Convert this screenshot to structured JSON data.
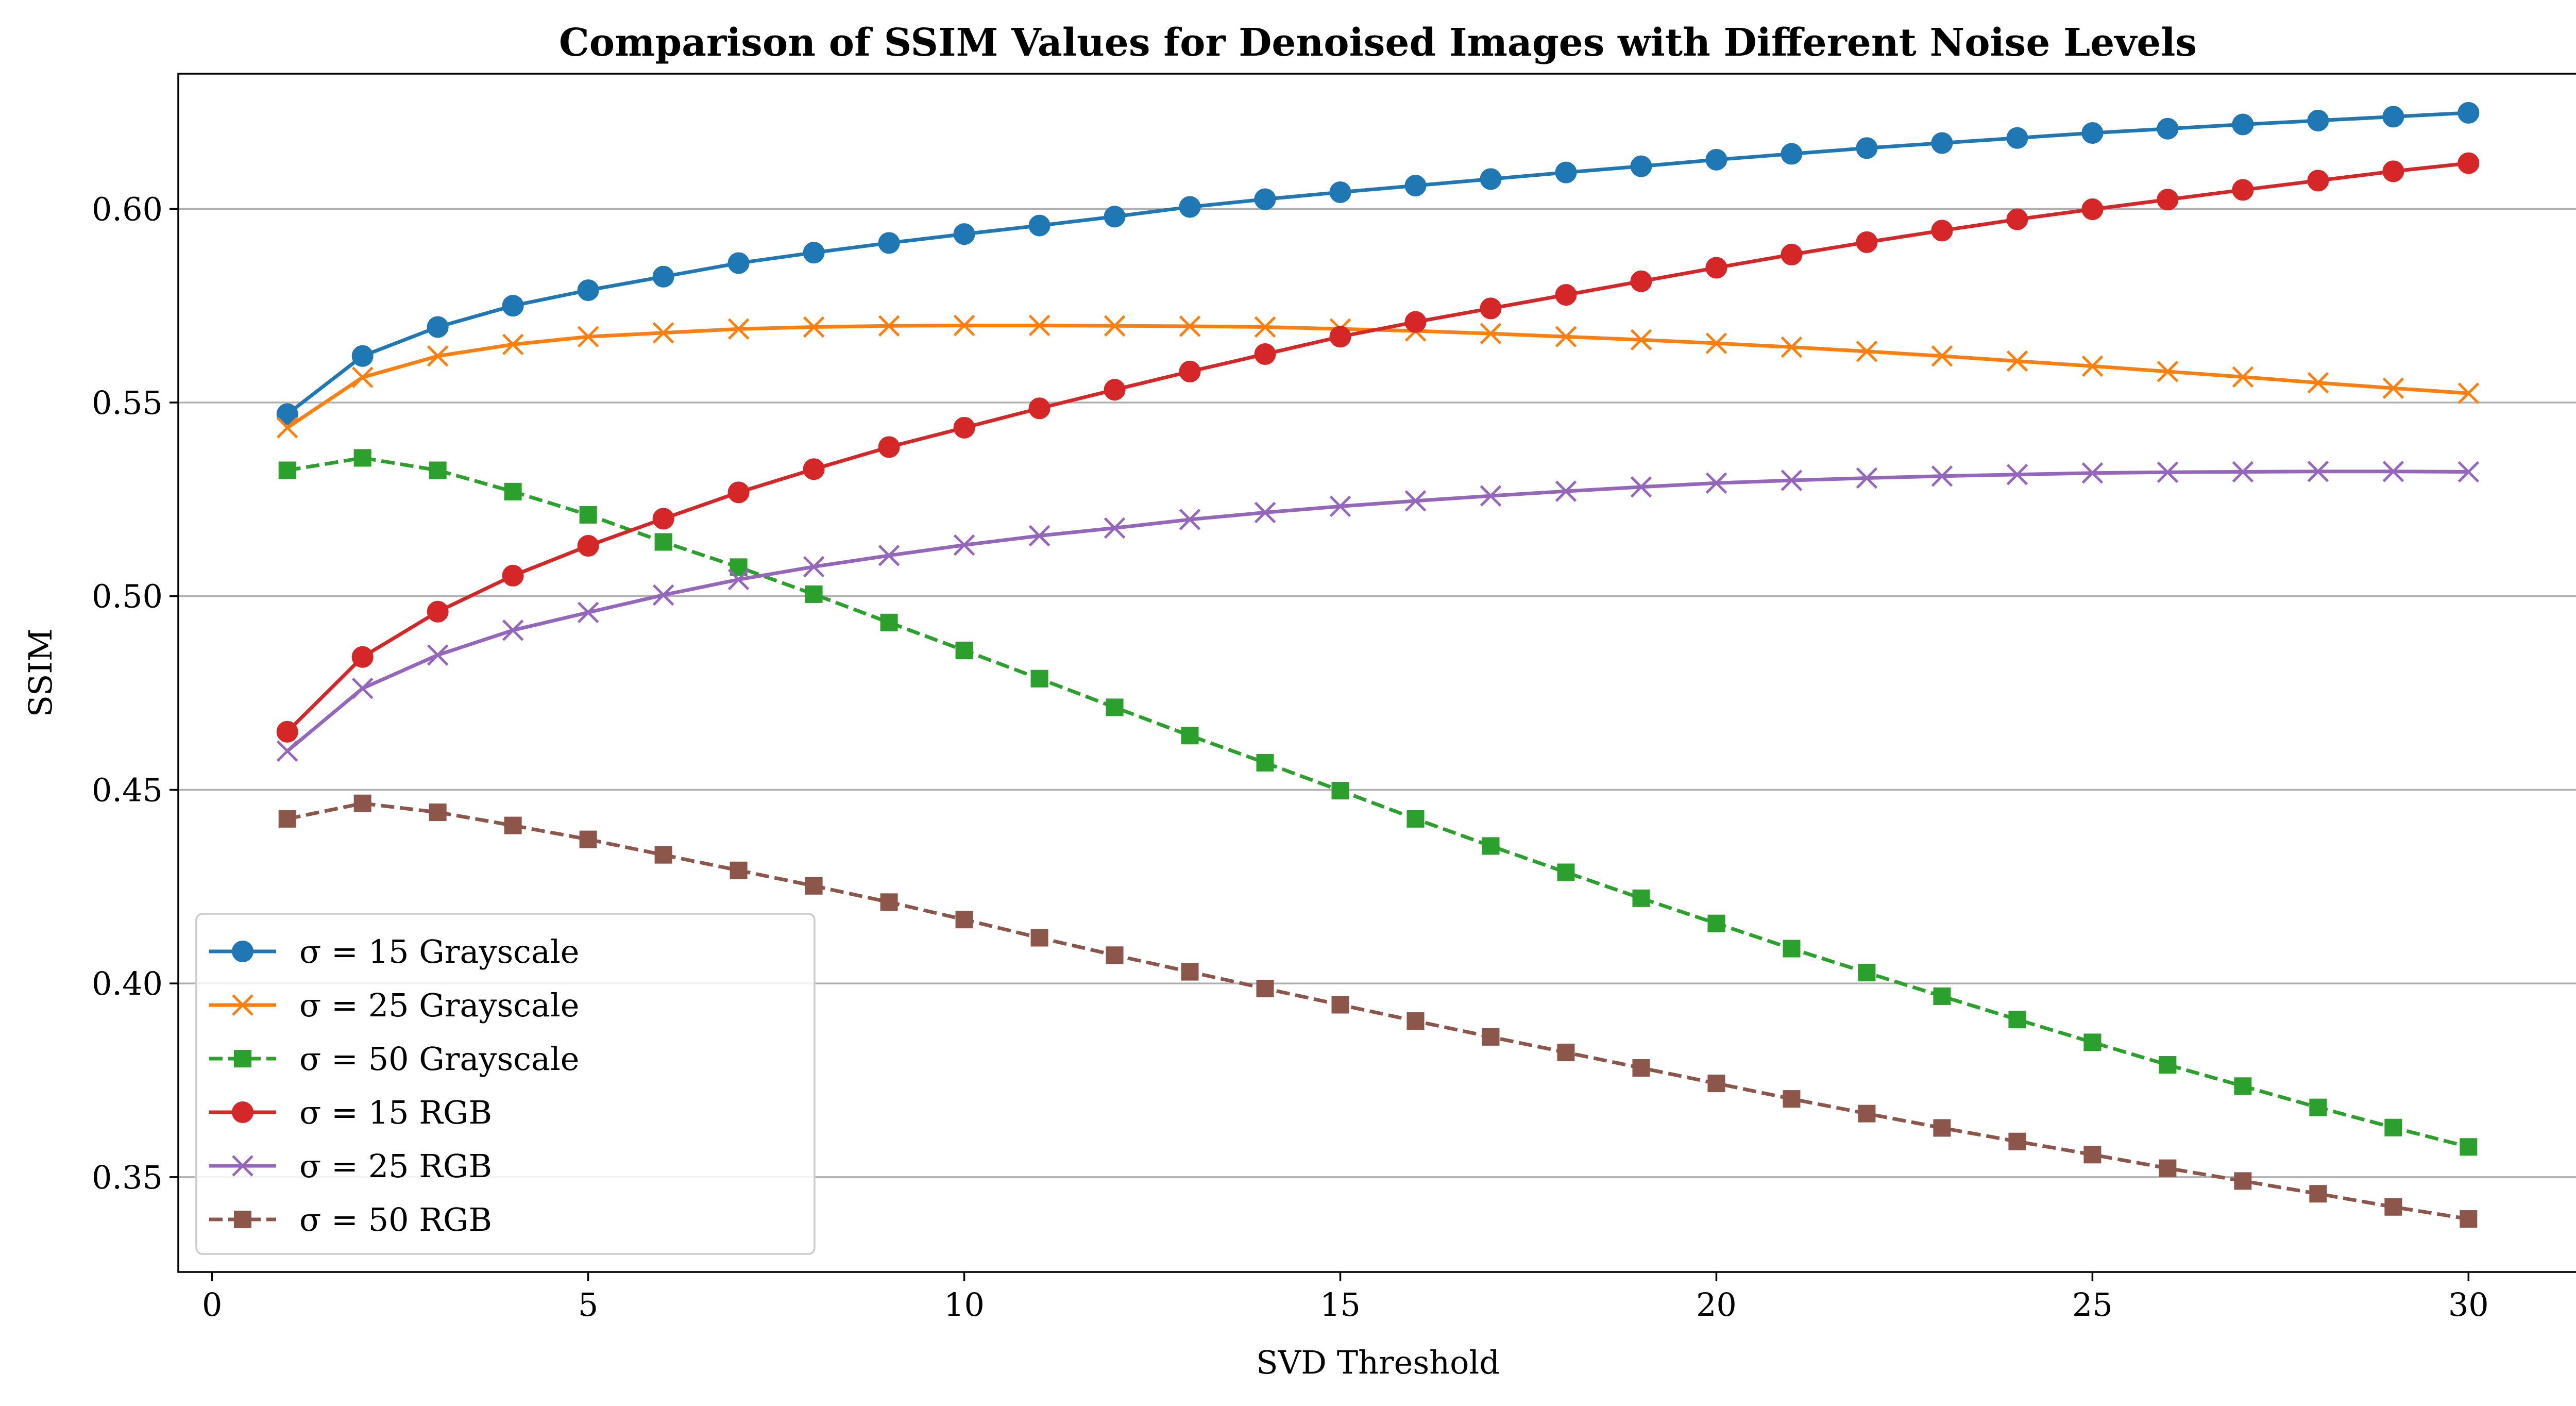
{
  "chart_data": {
    "type": "line",
    "title": "Comparison of SSIM Values for Denoised Images with Different Noise Levels",
    "xlabel": "SVD Threshold",
    "ylabel": "SSIM",
    "xlim": [
      -0.45,
      31.45
    ],
    "ylim": [
      0.3255,
      0.6349
    ],
    "x_ticks": [
      0,
      5,
      10,
      15,
      20,
      25,
      30
    ],
    "x_tick_labels": [
      "0",
      "5",
      "10",
      "15",
      "20",
      "25",
      "30"
    ],
    "y_ticks": [
      0.35,
      0.4,
      0.45,
      0.5,
      0.55,
      0.6
    ],
    "y_tick_labels": [
      "0.35",
      "0.40",
      "0.45",
      "0.50",
      "0.55",
      "0.60"
    ],
    "grid": "horizontal",
    "legend_position": "lower-left",
    "x": [
      1,
      2,
      3,
      4,
      5,
      6,
      7,
      8,
      9,
      10,
      11,
      12,
      13,
      14,
      15,
      16,
      17,
      18,
      19,
      20,
      21,
      22,
      23,
      24,
      25,
      26,
      27,
      28,
      29,
      30
    ],
    "series": [
      {
        "name": "σ = 15 Grayscale",
        "color": "#1f77b4",
        "marker": "circle",
        "linestyle": "solid",
        "values": [
          0.547,
          0.562,
          0.5695,
          0.575,
          0.579,
          0.5825,
          0.586,
          0.5887,
          0.5912,
          0.5935,
          0.5957,
          0.598,
          0.6005,
          0.6025,
          0.6043,
          0.606,
          0.6077,
          0.6094,
          0.611,
          0.6127,
          0.6142,
          0.6157,
          0.617,
          0.6183,
          0.6196,
          0.6207,
          0.6218,
          0.6228,
          0.6238,
          0.6248
        ]
      },
      {
        "name": "σ = 25 Grayscale",
        "color": "#ff7f0e",
        "marker": "x",
        "linestyle": "solid",
        "values": [
          0.5435,
          0.5565,
          0.562,
          0.565,
          0.567,
          0.568,
          0.569,
          0.5695,
          0.5698,
          0.5699,
          0.5699,
          0.5698,
          0.5697,
          0.5695,
          0.569,
          0.5685,
          0.5678,
          0.567,
          0.5662,
          0.5653,
          0.5643,
          0.5632,
          0.562,
          0.5607,
          0.5594,
          0.558,
          0.5566,
          0.5551,
          0.5537,
          0.5524
        ]
      },
      {
        "name": "σ = 50 Grayscale",
        "color": "#2ca02c",
        "marker": "square",
        "linestyle": "dashed",
        "values": [
          0.5325,
          0.5357,
          0.5325,
          0.527,
          0.521,
          0.514,
          0.5075,
          0.5005,
          0.4932,
          0.486,
          0.4787,
          0.4713,
          0.464,
          0.457,
          0.4498,
          0.4425,
          0.4355,
          0.4287,
          0.422,
          0.4155,
          0.409,
          0.4028,
          0.3967,
          0.3907,
          0.3848,
          0.379,
          0.3735,
          0.368,
          0.3628,
          0.3578
        ]
      },
      {
        "name": "σ = 15 RGB",
        "color": "#d62728",
        "marker": "circle",
        "linestyle": "solid",
        "values": [
          0.465,
          0.4843,
          0.496,
          0.5053,
          0.513,
          0.52,
          0.5268,
          0.5328,
          0.5385,
          0.5435,
          0.5485,
          0.5533,
          0.558,
          0.5625,
          0.567,
          0.5708,
          0.5743,
          0.5778,
          0.5813,
          0.5848,
          0.5882,
          0.5914,
          0.5944,
          0.5973,
          0.5999,
          0.6024,
          0.6049,
          0.6073,
          0.6097,
          0.6118
        ]
      },
      {
        "name": "σ = 25 RGB",
        "color": "#9467bd",
        "marker": "x",
        "linestyle": "solid",
        "values": [
          0.46,
          0.4762,
          0.4848,
          0.4912,
          0.4958,
          0.5003,
          0.5043,
          0.5076,
          0.5105,
          0.5132,
          0.5156,
          0.5176,
          0.5198,
          0.5216,
          0.5232,
          0.5246,
          0.5259,
          0.5271,
          0.5282,
          0.5292,
          0.5299,
          0.5305,
          0.531,
          0.5314,
          0.5318,
          0.532,
          0.5321,
          0.5322,
          0.5322,
          0.5321
        ]
      },
      {
        "name": "σ = 50 RGB",
        "color": "#8c564b",
        "marker": "square",
        "linestyle": "dashed",
        "values": [
          0.4425,
          0.4465,
          0.4442,
          0.4408,
          0.4372,
          0.4332,
          0.4292,
          0.4252,
          0.421,
          0.4165,
          0.4118,
          0.4073,
          0.403,
          0.3987,
          0.3945,
          0.3903,
          0.3862,
          0.3822,
          0.3782,
          0.3742,
          0.3702,
          0.3664,
          0.3627,
          0.3592,
          0.3558,
          0.3523,
          0.349,
          0.3457,
          0.3423,
          0.3392
        ]
      }
    ]
  }
}
